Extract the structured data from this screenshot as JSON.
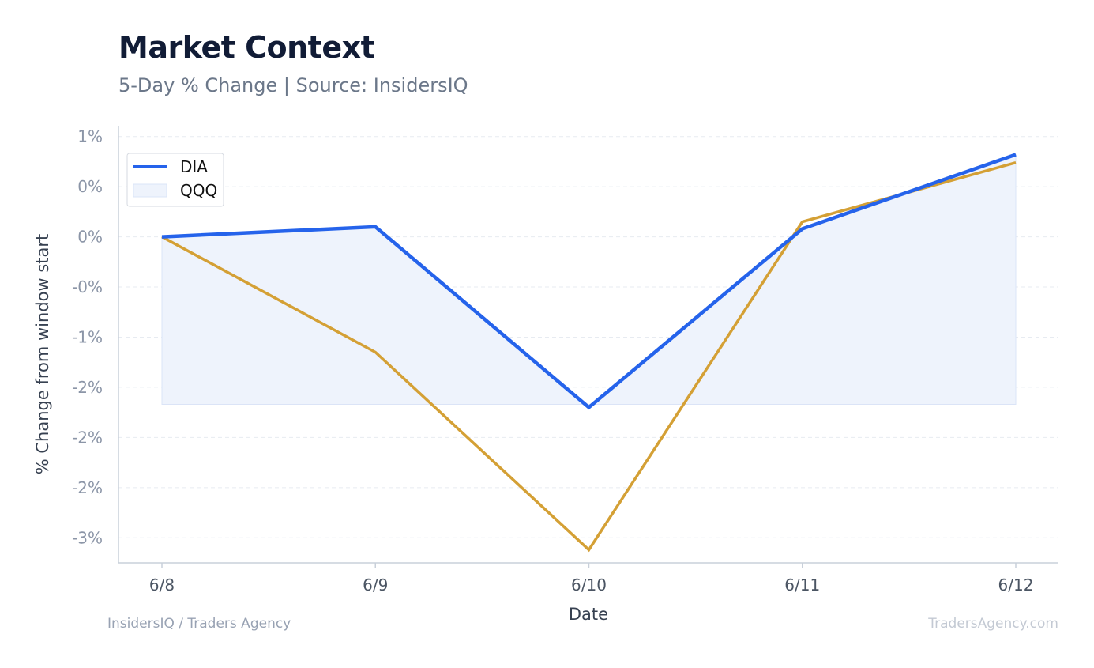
{
  "header": {
    "title": "Market Context",
    "subtitle": "5-Day % Change | Source: InsidersIQ"
  },
  "footer": {
    "left": "InsidersIQ / Traders Agency",
    "right": "TradersAgency.com"
  },
  "chart_data": {
    "type": "line",
    "xlabel": "Date",
    "ylabel": "% Change from window start",
    "categories": [
      "6/8",
      "6/9",
      "6/10",
      "6/11",
      "6/12"
    ],
    "ylim": [
      -3.25,
      1.1
    ],
    "yticks": [
      1.0,
      0.5,
      0.0,
      -0.5,
      -1.0,
      -1.5,
      -2.0,
      -2.5,
      -3.0
    ],
    "ytick_labels": [
      "1%",
      "0%",
      "0%",
      "-0%",
      "-1%",
      "-2%",
      "-2%",
      "-2%",
      "-3%"
    ],
    "grid": true,
    "legend": "top-left",
    "series": [
      {
        "name": "DIA",
        "color": "#2563eb",
        "values": [
          0.0,
          0.1,
          -1.7,
          0.08,
          0.82
        ]
      },
      {
        "name": "QQQ",
        "color": "#d4a035",
        "values": [
          0.0,
          -1.15,
          -3.12,
          0.15,
          0.74
        ]
      }
    ],
    "band": {
      "color": "#eef3fc",
      "stroke": "#dbe4f7",
      "low": -1.67
    }
  }
}
